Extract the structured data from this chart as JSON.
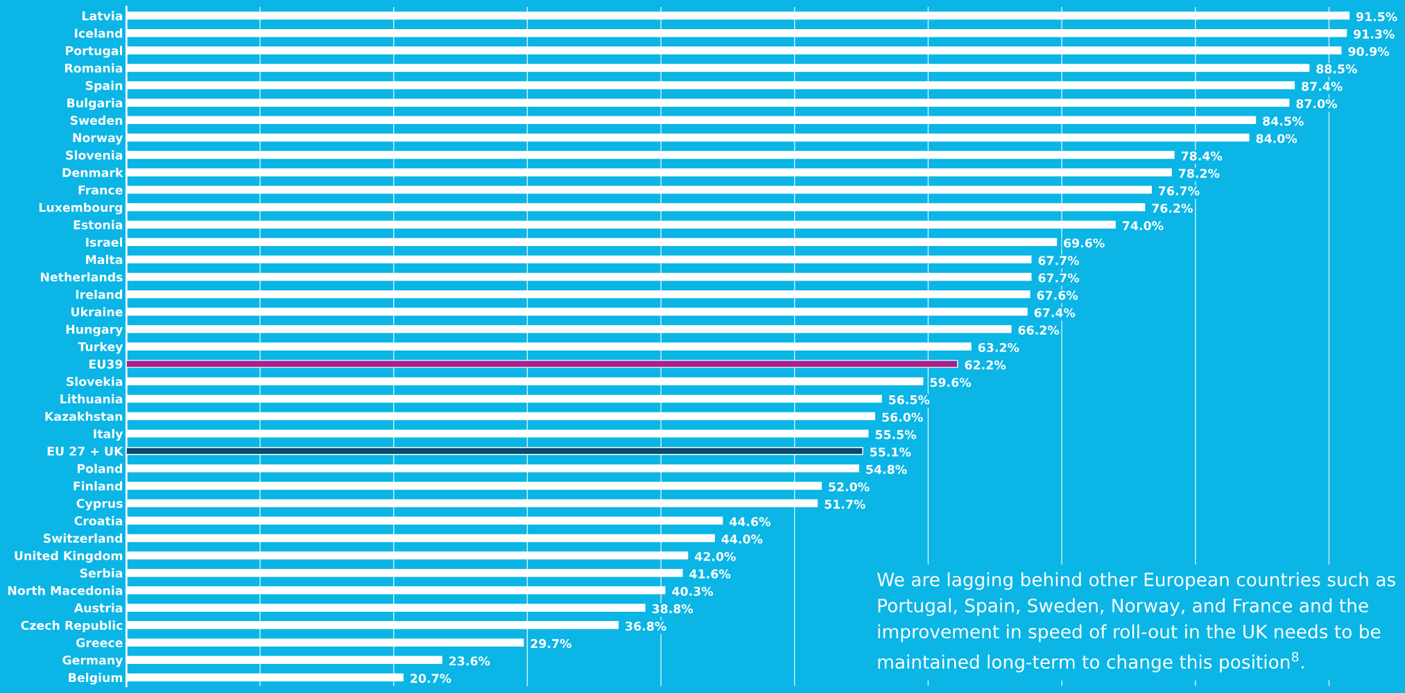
{
  "chart_data": {
    "type": "bar",
    "orientation": "horizontal",
    "categories": [
      "Latvia",
      "Iceland",
      "Portugal",
      "Romania",
      "Spain",
      "Bulgaria",
      "Sweden",
      "Norway",
      "Slovenia",
      "Denmark",
      "France",
      "Luxembourg",
      "Estonia",
      "Israel",
      "Malta",
      "Netherlands",
      "Ireland",
      "Ukraine",
      "Hungary",
      "Turkey",
      "EU39",
      "Slovekia",
      "Lithuania",
      "Kazakhstan",
      "Italy",
      "EU 27 + UK",
      "Poland",
      "Finland",
      "Cyprus",
      "Croatia",
      "Switzerland",
      "United Kingdom",
      "Serbia",
      "North Macedonia",
      "Austria",
      "Czech Republic",
      "Greece",
      "Germany",
      "Belgium"
    ],
    "values": [
      91.5,
      91.3,
      90.9,
      88.5,
      87.4,
      87.0,
      84.5,
      84.0,
      78.4,
      78.2,
      76.7,
      76.2,
      74.0,
      69.6,
      67.7,
      67.7,
      67.6,
      67.4,
      66.2,
      63.2,
      62.2,
      59.6,
      56.5,
      56.0,
      55.5,
      55.1,
      54.8,
      52.0,
      51.7,
      44.6,
      44.0,
      42.0,
      41.6,
      40.3,
      38.8,
      36.8,
      29.7,
      23.6,
      20.7
    ],
    "value_labels": [
      "91.5%",
      "91.3%",
      "90.9%",
      "88.5%",
      "87.4%",
      "87.0%",
      "84.5%",
      "84.0%",
      "78.4%",
      "78.2%",
      "76.7%",
      "76.2%",
      "74.0%",
      "69.6%",
      "67.7%",
      "67.7%",
      "67.6%",
      "67.4%",
      "66.2%",
      "63.2%",
      "62.2%",
      "59.6%",
      "56.5%",
      "56.0%",
      "55.5%",
      "55.1%",
      "54.8%",
      "52.0%",
      "51.7%",
      "44.6%",
      "44.0%",
      "42.0%",
      "41.6%",
      "40.3%",
      "38.8%",
      "36.8%",
      "29.7%",
      "23.6%",
      "20.7%"
    ],
    "colors": [
      "#ffffff",
      "#ffffff",
      "#ffffff",
      "#ffffff",
      "#ffffff",
      "#ffffff",
      "#ffffff",
      "#ffffff",
      "#ffffff",
      "#ffffff",
      "#ffffff",
      "#ffffff",
      "#ffffff",
      "#ffffff",
      "#ffffff",
      "#ffffff",
      "#ffffff",
      "#ffffff",
      "#ffffff",
      "#ffffff",
      "#a3228f",
      "#ffffff",
      "#ffffff",
      "#ffffff",
      "#ffffff",
      "#0b4a6e",
      "#ffffff",
      "#ffffff",
      "#ffffff",
      "#ffffff",
      "#ffffff",
      "#ffffff",
      "#ffffff",
      "#ffffff",
      "#ffffff",
      "#ffffff",
      "#ffffff",
      "#ffffff",
      "#ffffff"
    ],
    "xticks": [
      {
        "value": 10,
        "label": null
      },
      {
        "value": 20,
        "label": null
      },
      {
        "value": 30,
        "label": null
      },
      {
        "value": 40,
        "label": null
      },
      {
        "value": 50,
        "label": null
      },
      {
        "value": 60,
        "label": null
      },
      {
        "value": 70,
        "label": null
      },
      {
        "value": 80,
        "label": null
      },
      {
        "value": 90,
        "label": null
      }
    ],
    "tick_labels": "y",
    "grid": "x",
    "annotations": [
      "We are lagging behind other European countries such as Portugal, Spain, Sweden, Norway, and France and the improvement in speed of roll-out in the UK needs to be maintained long-term to change this position$^{8}$."
    ]
  }
}
